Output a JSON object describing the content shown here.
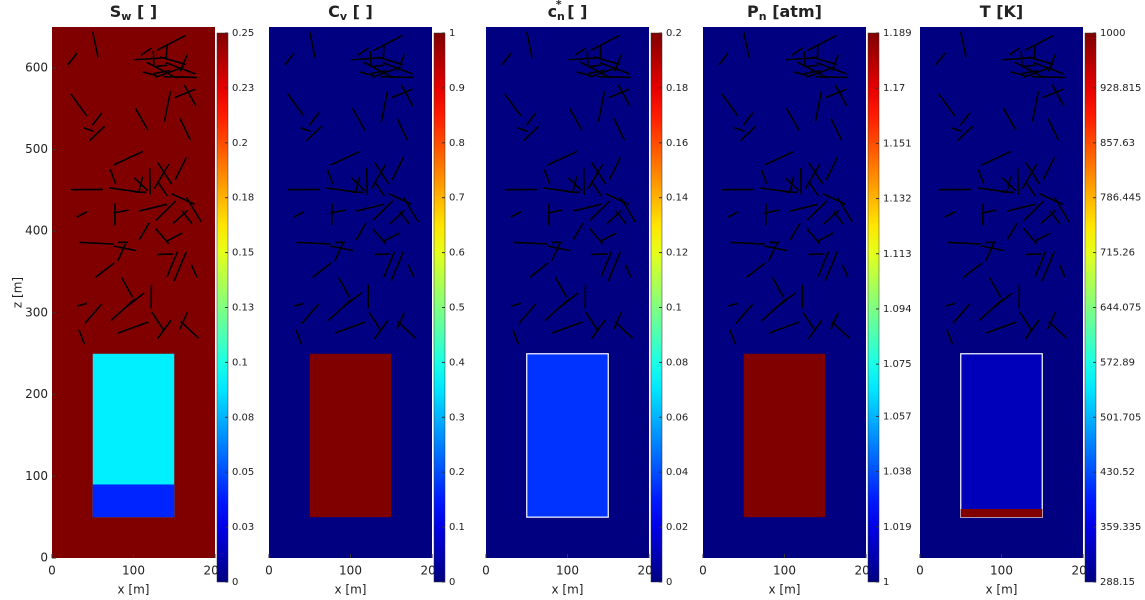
{
  "chart_data": [
    {
      "type": "heatmap",
      "title": [
        {
          "text": "S"
        },
        {
          "text": "w",
          "shift": "sub"
        },
        {
          "text": " [ ]"
        }
      ],
      "xlabel": "x [m]",
      "ylabel": "z [m]",
      "xlim": [
        0,
        200
      ],
      "xticks": [
        0,
        100,
        200
      ],
      "ylim": [
        0,
        650
      ],
      "yticks": [
        0,
        100,
        200,
        300,
        400,
        500,
        600
      ],
      "colormap": "jet",
      "clim": [
        0,
        0.25
      ],
      "cticks": [
        0,
        {
          "value": 0.025,
          "label": "0.03"
        },
        {
          "value": 0.05,
          "label": "0.05"
        },
        {
          "value": 0.075,
          "label": "0.08"
        },
        0.1,
        {
          "value": 0.125,
          "label": "0.13"
        },
        0.15,
        {
          "value": 0.175,
          "label": "0.18"
        },
        0.2,
        {
          "value": 0.225,
          "label": "0.23"
        },
        0.25
      ],
      "background": 0.25,
      "regions": [
        {
          "x": [
            50,
            150
          ],
          "z": [
            50,
            250
          ],
          "value": 0.09
        },
        {
          "x": [
            50,
            150
          ],
          "z": [
            50,
            90
          ],
          "value": 0.04
        }
      ]
    },
    {
      "type": "heatmap",
      "title": [
        {
          "text": "C"
        },
        {
          "text": "v",
          "shift": "sub"
        },
        {
          "text": " [ ]"
        }
      ],
      "xlabel": "x [m]",
      "xlim": [
        0,
        200
      ],
      "xticks": [
        0,
        100,
        200
      ],
      "ylim": [
        0,
        650
      ],
      "colormap": "jet",
      "clim": [
        0,
        1
      ],
      "cticks": [
        0,
        0.1,
        0.2,
        0.3,
        0.4,
        0.5,
        0.6,
        0.7,
        0.8,
        0.9,
        1
      ],
      "background": 0,
      "regions": [
        {
          "x": [
            50,
            150
          ],
          "z": [
            50,
            250
          ],
          "value": 1
        }
      ]
    },
    {
      "type": "heatmap",
      "title": [
        {
          "text": "c"
        },
        {
          "text": "n",
          "shift": "sub"
        },
        {
          "text": "*",
          "shift": "sup"
        },
        {
          "text": " [ ]"
        }
      ],
      "xlabel": "x [m]",
      "xlim": [
        0,
        200
      ],
      "xticks": [
        0,
        100,
        200
      ],
      "ylim": [
        0,
        650
      ],
      "colormap": "jet",
      "clim": [
        0,
        0.2
      ],
      "cticks": [
        0,
        0.02,
        0.04,
        0.06,
        0.08,
        0.1,
        0.12,
        0.14,
        0.16,
        0.18,
        0.2
      ],
      "background": 0,
      "regions": [
        {
          "x": [
            50,
            150
          ],
          "z": [
            50,
            250
          ],
          "value": 0.035,
          "outline": "#ffffff"
        }
      ]
    },
    {
      "type": "heatmap",
      "title": [
        {
          "text": "P"
        },
        {
          "text": "n",
          "shift": "sub"
        },
        {
          "text": " [atm]"
        }
      ],
      "xlabel": "x [m]",
      "xlim": [
        0,
        200
      ],
      "xticks": [
        0,
        100,
        200
      ],
      "ylim": [
        0,
        650
      ],
      "colormap": "jet",
      "clim": [
        1,
        1.189
      ],
      "cticks": [
        1,
        1.019,
        1.038,
        1.057,
        1.075,
        1.094,
        1.113,
        1.132,
        1.151,
        1.17,
        1.189
      ],
      "background": 1,
      "regions": [
        {
          "x": [
            50,
            150
          ],
          "z": [
            50,
            250
          ],
          "value": 1.189
        }
      ]
    },
    {
      "type": "heatmap",
      "title": [
        {
          "text": "T [K]"
        }
      ],
      "xlabel": "x [m]",
      "xlim": [
        0,
        200
      ],
      "xticks": [
        0,
        100,
        200
      ],
      "ylim": [
        0,
        650
      ],
      "colormap": "jet",
      "clim": [
        288.15,
        1000
      ],
      "cticks": [
        288.15,
        359.335,
        430.52,
        501.705,
        572.89,
        644.075,
        715.26,
        786.445,
        857.63,
        928.815,
        1000
      ],
      "background": 288.15,
      "regions": [
        {
          "x": [
            50,
            150
          ],
          "z": [
            50,
            250
          ],
          "value": 330,
          "outline": "#ffffff"
        },
        {
          "x": [
            50,
            150
          ],
          "z": [
            50,
            60
          ],
          "value": 1000
        }
      ]
    }
  ]
}
